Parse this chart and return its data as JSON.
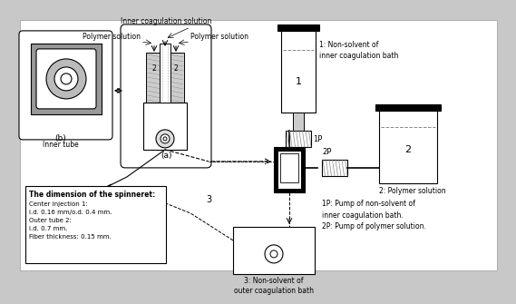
{
  "bg_color": "#c8c8c8",
  "white": "#ffffff",
  "black": "#000000",
  "gray_dark": "#555555",
  "gray_mid": "#888888",
  "gray_light": "#cccccc",
  "gray_hatch": "#aaaaaa",
  "label_1": "1: Non-solvent of\ninner coagulation bath",
  "label_2": "2: Polymer solution",
  "label_3": "3: Non-solvent of\nouter coagulation bath",
  "label_1P": "1P",
  "label_2P": "2P",
  "label_a": "(a)",
  "label_b": "(b)",
  "label_inner_tube": "Inner tube",
  "label_inner_coag": "Inner coagulation solution",
  "label_polymer_sol_left": "Polymer solution",
  "label_polymer_sol_right": "Polymer solution",
  "label_1p_desc": "1P: Pump of non-solvent of\ninner coagulation bath.\n2P: Pump of polymer solution.",
  "label_dim_title": "The dimension of the spinneret:",
  "label_dim_body": "Center injection 1:\ni.d. 0.16 mm/o.d. 0.4 mm.\nOuter tube 2:\ni.d. 0.7 mm.\nFiber thickness: 0.15 mm.",
  "label_3_num": "3",
  "num_1": "1",
  "num_2": "2"
}
